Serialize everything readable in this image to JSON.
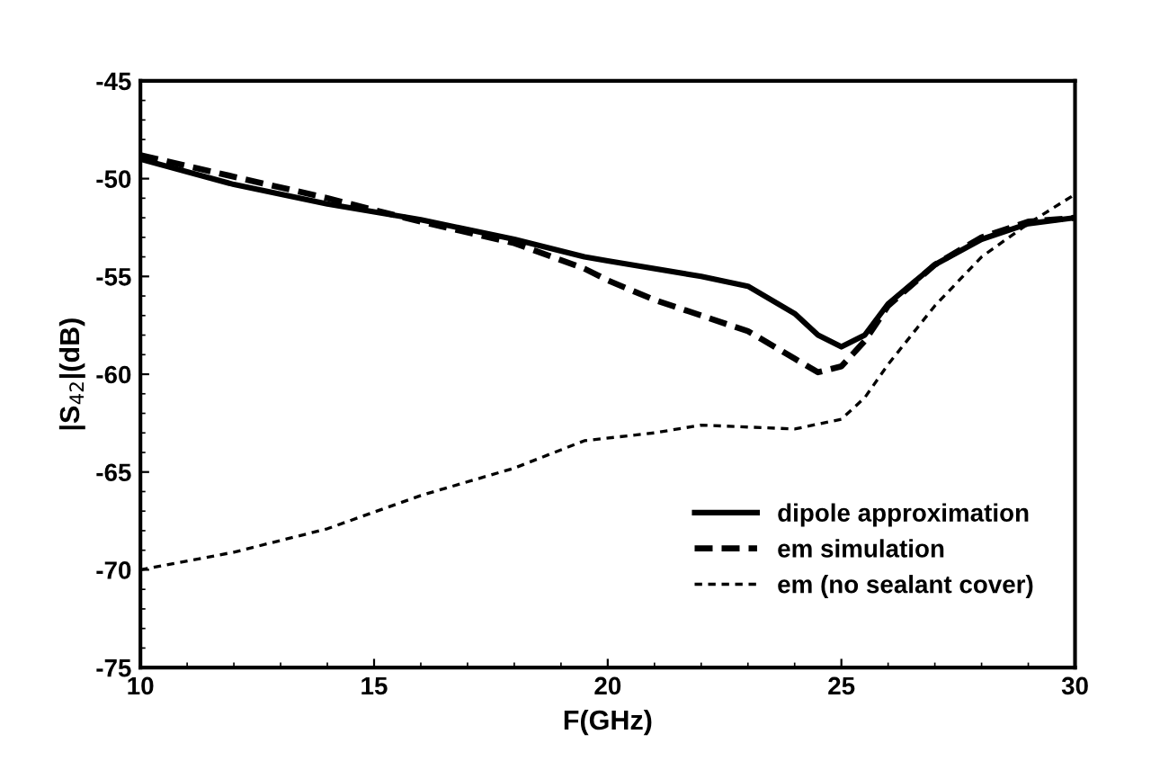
{
  "chart_data": {
    "type": "line",
    "xlabel": "F(GHz)",
    "ylabel": "|S$_{42}$|(dB)",
    "xlim": [
      10,
      30
    ],
    "ylim": [
      -75,
      -45
    ],
    "xticks": [
      10,
      15,
      20,
      25,
      30
    ],
    "yticks": [
      -75,
      -70,
      -65,
      -60,
      -55,
      -50,
      -45
    ],
    "grid": false,
    "legend": "bottom right",
    "series": [
      {
        "name": "dipole approximation",
        "color": "#000000",
        "line_style": "solid",
        "x": [
          10,
          12,
          14,
          16,
          18,
          19.5,
          20,
          22,
          23,
          24,
          24.5,
          25,
          25.5,
          26,
          27,
          28,
          29,
          30
        ],
        "values": [
          -49.0,
          -50.3,
          -51.3,
          -52.1,
          -53.1,
          -54.0,
          -54.2,
          -55.0,
          -55.5,
          -56.9,
          -58.0,
          -58.6,
          -58.0,
          -56.4,
          -54.4,
          -53.1,
          -52.3,
          -52.0
        ]
      },
      {
        "name": "em simulation",
        "color": "#000000",
        "line_style": "dashed",
        "x": [
          10,
          12,
          14,
          16,
          18,
          19.5,
          20,
          21,
          22,
          23,
          24,
          24.5,
          25,
          25.5,
          26,
          27,
          28,
          29,
          30
        ],
        "values": [
          -48.8,
          -49.9,
          -51.0,
          -52.2,
          -53.3,
          -54.6,
          -55.2,
          -56.2,
          -57.0,
          -57.8,
          -59.2,
          -59.9,
          -59.6,
          -58.3,
          -56.5,
          -54.4,
          -53.0,
          -52.2,
          -52.0
        ]
      },
      {
        "name": "em (no sealant cover)",
        "color": "#000000",
        "line_style": "dotted",
        "x": [
          10,
          12,
          14,
          16,
          18,
          19.5,
          21,
          22,
          23,
          24,
          25,
          25.5,
          26,
          27,
          28,
          29,
          30
        ],
        "values": [
          -70.0,
          -69.1,
          -67.9,
          -66.2,
          -64.8,
          -63.4,
          -63.0,
          -62.6,
          -62.7,
          -62.8,
          -62.3,
          -61.2,
          -59.5,
          -56.5,
          -54.0,
          -52.3,
          -50.8
        ]
      }
    ]
  }
}
